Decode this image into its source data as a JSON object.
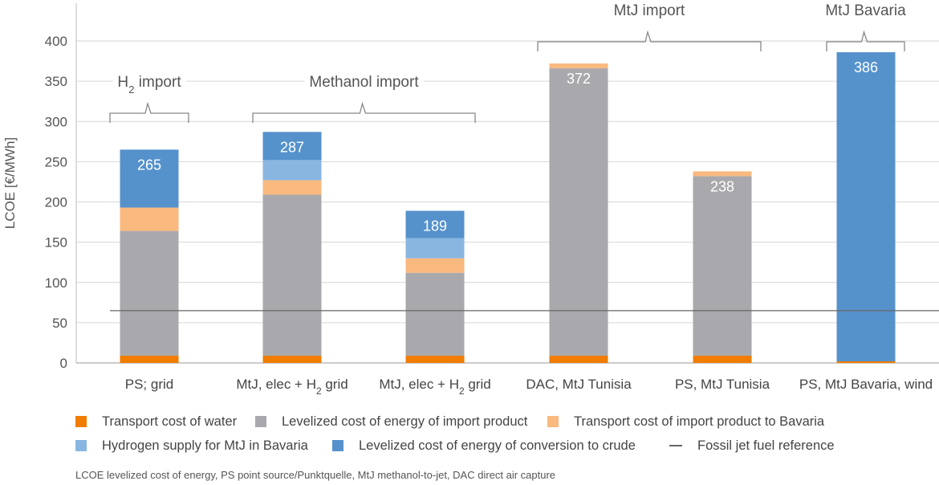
{
  "chart_data": {
    "type": "bar",
    "stacked": true,
    "ylabel": "LCOE [€/MWh]",
    "ylim": [
      0,
      400
    ],
    "ytick_step": 50,
    "grid": true,
    "categories": [
      "PS; grid",
      "MtJ, elec + H₂ grid",
      "MtJ, elec + H₂ grid",
      "DAC, MtJ Tunisia",
      "PS, MtJ Tunisia",
      "PS, MtJ Bavaria, wind"
    ],
    "series": [
      {
        "name": "Transport cost of water",
        "color": "#f07d00",
        "values": [
          9,
          9,
          9,
          9,
          9,
          2
        ]
      },
      {
        "name": "Levelized cost of energy of import product",
        "color": "#a9a9ad",
        "values": [
          155,
          200,
          103,
          357,
          223,
          0
        ]
      },
      {
        "name": "Transport cost of import product to Bavaria",
        "color": "#f9b97f",
        "values": [
          29,
          18,
          18,
          6,
          6,
          0
        ]
      },
      {
        "name": "Hydrogen supply for MtJ in Bavaria",
        "color": "#88b6e0",
        "values": [
          0,
          25,
          25,
          0,
          0,
          0
        ]
      },
      {
        "name": "Levelized cost of energy of conversion to crude",
        "color": "#5592cc",
        "values": [
          72,
          35,
          34,
          0,
          0,
          384
        ]
      }
    ],
    "totals": [
      265,
      287,
      189,
      372,
      238,
      386
    ],
    "reference_line": {
      "name": "Fossil jet fuel reference",
      "value": 65,
      "color": "#666666"
    },
    "groups": [
      {
        "label": "H₂ import",
        "bars": [
          0
        ]
      },
      {
        "label": "Methanol import",
        "bars": [
          1,
          2
        ]
      },
      {
        "label": "MtJ import",
        "bars": [
          3,
          4
        ]
      },
      {
        "label": "MtJ Bavaria",
        "bars": [
          5
        ]
      }
    ],
    "legend_position": "bottom"
  },
  "footnote": "LCOE levelized cost of energy, PS point source/Punktquelle, MtJ methanol-to-jet, DAC direct air capture"
}
